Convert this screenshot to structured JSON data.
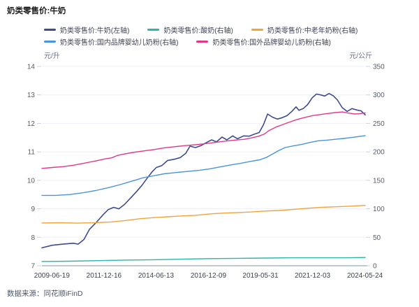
{
  "page": {
    "title": "奶类零售价:牛奶",
    "source": "数据来源：同花顺iFinD"
  },
  "chart_data": {
    "type": "line",
    "title": "奶类零售价:牛奶",
    "grid": "horizontal",
    "legend_position": "top",
    "x_tick_labels": [
      "2009-06-19",
      "2011-12-16",
      "2014-06-13",
      "2016-12-09",
      "2019-05-31",
      "2021-12-03",
      "2024-05-24"
    ],
    "x_tick_pct": [
      3.1,
      19.2,
      35.3,
      51.5,
      67.6,
      83.7,
      99.9
    ],
    "y_left": {
      "unit": "元/升",
      "min": 7,
      "max": 14,
      "ticks": [
        7,
        8,
        9,
        10,
        11,
        12,
        13,
        14
      ]
    },
    "y_right": {
      "unit": "元/公斤",
      "min": 0,
      "max": 350,
      "ticks": [
        0,
        50,
        100,
        150,
        200,
        250,
        300,
        350
      ]
    },
    "legend_rows": [
      [
        0,
        1,
        2
      ],
      [
        3,
        4
      ]
    ],
    "series": [
      {
        "name": "奶类零售价:牛奶(左轴)",
        "axis": "left",
        "color": "#3e4b91",
        "x_pct": [
          0,
          3.2,
          6.5,
          9.7,
          11.2,
          13,
          14.7,
          16.8,
          19,
          20.5,
          22.2,
          23.8,
          25.5,
          27.6,
          29.4,
          30.9,
          32.4,
          34.1,
          35.4,
          37.1,
          38.9,
          41,
          42.8,
          44.5,
          45.8,
          47.5,
          49.2,
          50.8,
          52.5,
          54,
          55.7,
          57.2,
          59,
          60.5,
          62.4,
          64.1,
          65.7,
          67.2,
          68.5,
          69.8,
          71.3,
          72.8,
          74.3,
          75.8,
          77.3,
          78.6,
          79.5,
          80.8,
          82.1,
          83.6,
          84.9,
          86.2,
          87.5,
          88.8,
          90.1,
          91.4,
          92.9,
          94.4,
          95.9,
          97.4,
          98.7,
          100
        ],
        "values": [
          7.63,
          7.72,
          7.76,
          7.79,
          7.76,
          7.92,
          8.28,
          8.52,
          8.8,
          8.97,
          9.05,
          9.0,
          9.15,
          9.4,
          9.62,
          9.82,
          10.05,
          10.3,
          10.45,
          10.52,
          10.7,
          10.74,
          10.8,
          10.95,
          11.2,
          11.15,
          11.22,
          11.32,
          11.42,
          11.35,
          11.52,
          11.42,
          11.56,
          11.46,
          11.56,
          11.55,
          11.62,
          11.68,
          11.95,
          12.33,
          12.22,
          12.15,
          12.2,
          12.27,
          12.42,
          12.58,
          12.46,
          12.52,
          12.65,
          12.9,
          13.03,
          13.0,
          12.96,
          13.05,
          12.97,
          12.82,
          12.55,
          12.42,
          12.52,
          12.47,
          12.44,
          12.3
        ]
      },
      {
        "name": "奶类零售价:酸奶(右轴)",
        "axis": "right",
        "color": "#2ab7a9",
        "x_pct": [
          0,
          8.6,
          17.3,
          25.9,
          34.6,
          43.2,
          51.8,
          60.5,
          69.1,
          77.8,
          86.4,
          95,
          100
        ],
        "values": [
          7.5,
          8,
          9,
          10,
          10.5,
          11.5,
          12.5,
          13,
          13.5,
          14,
          14,
          14,
          14.5
        ]
      },
      {
        "name": "奶类零售价:中老年奶粉(右轴)",
        "axis": "right",
        "color": "#f2a33c",
        "x_pct": [
          0,
          5.4,
          10.8,
          16.6,
          21.6,
          25.9,
          30.2,
          34.6,
          38.9,
          43.2,
          47.5,
          51.8,
          56.2,
          60.5,
          64.8,
          69.1,
          73.4,
          77.8,
          82.1,
          86.4,
          90.7,
          95,
          100
        ],
        "values": [
          75,
          75.5,
          74.8,
          75.5,
          77,
          79.5,
          82.5,
          84.5,
          86,
          87.5,
          88.5,
          91,
          92.5,
          93.5,
          94.5,
          96,
          97,
          99,
          101,
          102.5,
          103.5,
          104.5,
          106
        ]
      },
      {
        "name": "奶类零售价:国内品牌婴幼儿奶粉(右轴)",
        "axis": "right",
        "color": "#4a94db",
        "x_pct": [
          0,
          4.3,
          8.6,
          13,
          16.6,
          20.5,
          24.2,
          28.1,
          31.3,
          34.6,
          37.8,
          41,
          44.9,
          48.6,
          51.8,
          55.1,
          58.3,
          61.6,
          64.8,
          67.4,
          69.5,
          71.3,
          73,
          75.2,
          77.8,
          80.3,
          82.9,
          85.5,
          88.1,
          90.7,
          93.3,
          96.1,
          98.1,
          100
        ],
        "values": [
          123.5,
          123.5,
          125,
          128.5,
          132,
          137,
          142.5,
          149,
          154.5,
          158,
          161.5,
          163.5,
          165.5,
          167.5,
          170,
          173.5,
          177,
          180,
          183.5,
          186,
          190.5,
          196,
          201.5,
          207.5,
          210.5,
          213,
          216.5,
          219.5,
          220.5,
          222,
          223.5,
          225.5,
          227,
          228.5
        ]
      },
      {
        "name": "奶类零售价:国外品牌婴幼儿奶粉(右轴)",
        "axis": "right",
        "color": "#e0398c",
        "x_pct": [
          0,
          3.2,
          6.5,
          9.7,
          13,
          16.6,
          19.4,
          21.6,
          23.3,
          24.8,
          28.1,
          31.3,
          34.6,
          37.8,
          41,
          44.3,
          47.5,
          50.1,
          52.9,
          56.2,
          59.4,
          62.6,
          64.8,
          67,
          68.7,
          70.4,
          72.4,
          74.5,
          76.7,
          78.8,
          81,
          83.6,
          86,
          88.6,
          90.7,
          92.9,
          95,
          96.8,
          98.3,
          100
        ],
        "values": [
          171,
          172.5,
          174,
          176.5,
          180,
          184,
          187.5,
          189.5,
          193.5,
          195.5,
          199,
          201.5,
          204,
          207,
          209,
          211,
          212.5,
          214,
          216,
          218.5,
          220.5,
          222,
          224.5,
          227.5,
          231,
          238,
          243.5,
          248,
          252.5,
          256.5,
          260,
          263.5,
          265.5,
          267.5,
          269,
          270,
          268,
          266.5,
          267,
          268.5
        ]
      }
    ]
  }
}
